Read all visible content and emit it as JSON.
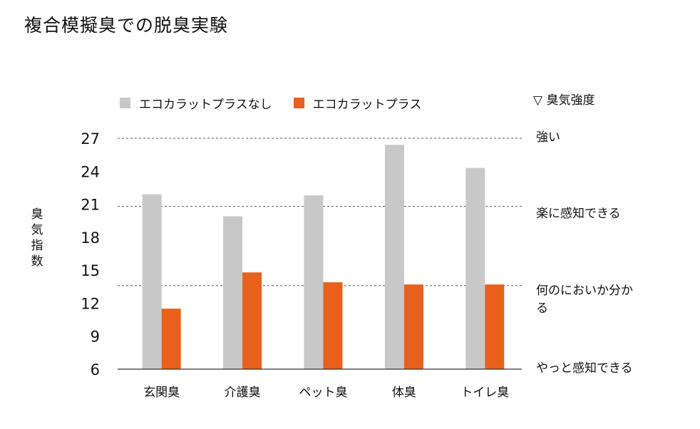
{
  "title": "複合模擬臭での脱臭実験",
  "chart_data": {
    "type": "bar",
    "categories": [
      "玄関臭",
      "介護臭",
      "ペット臭",
      "体臭",
      "トイレ臭"
    ],
    "series": [
      {
        "name": "エコカラットプラスなし",
        "color": "#c8c8c8",
        "values": [
          21.9,
          19.9,
          21.8,
          26.4,
          24.3
        ]
      },
      {
        "name": "エコカラットプラス",
        "color": "#e8601c",
        "values": [
          11.5,
          14.8,
          13.9,
          13.7,
          13.7
        ]
      }
    ],
    "yticks": [
      6,
      9,
      12,
      15,
      18,
      21,
      24,
      27
    ],
    "ylim": [
      6,
      27
    ],
    "ylabel": "臭気指数",
    "xlabel": "",
    "reference_lines": [
      27,
      20.8,
      13.6
    ],
    "intensity_scale": {
      "title": "▽ 臭気強度",
      "levels": [
        {
          "label": "強い"
        },
        {
          "label": "楽に感知できる"
        },
        {
          "label": "何のにおいか分かる"
        },
        {
          "label": "やっと感知できる"
        }
      ]
    }
  }
}
